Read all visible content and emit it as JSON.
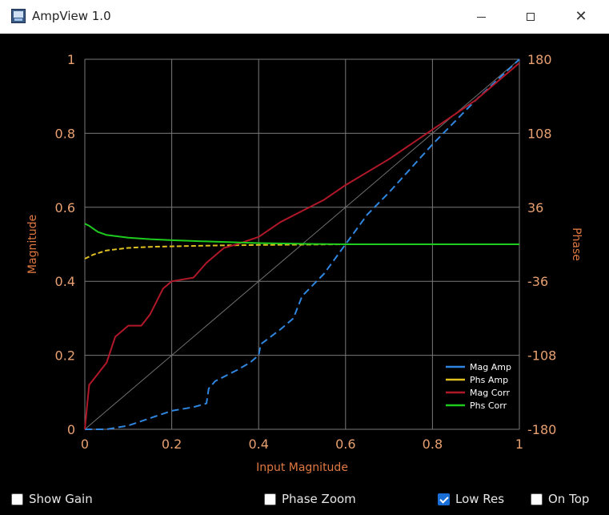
{
  "window": {
    "title": "AmpView 1.0",
    "icon": "app-icon",
    "controls": [
      "minimize-icon",
      "maximize-icon",
      "close-icon"
    ],
    "close_glyph": "✕"
  },
  "checkboxes": [
    {
      "label": "Show Gain",
      "checked": false
    },
    {
      "label": "Phase Zoom",
      "checked": false
    },
    {
      "label": "Low Res",
      "checked": true
    },
    {
      "label": "On Top",
      "checked": false
    }
  ],
  "chart_data": {
    "type": "line",
    "xlabel": "Input Magnitude",
    "ylabel": "Magnitude",
    "y2label": "Phase",
    "xlim": [
      0,
      1
    ],
    "ylim": [
      0,
      1
    ],
    "y2lim": [
      -180,
      180
    ],
    "xticks": [
      "0",
      "0.2",
      "0.4",
      "0.6",
      "0.8",
      "1"
    ],
    "yticks": [
      "0",
      "0.2",
      "0.4",
      "0.6",
      "0.8",
      "1"
    ],
    "y2ticks": [
      "-180",
      "-108",
      "-36",
      "36",
      "108",
      "180"
    ],
    "grid": true,
    "legend_position": "bottom-right",
    "colors": {
      "background": "#000000",
      "grid": "#7a7a7a",
      "text": "#e8a070",
      "axis_label": "#e07840",
      "diagonal": "#707070"
    },
    "series": [
      {
        "name": "Mag Amp",
        "color": "#2f86e0",
        "axis": "left",
        "x": [
          0.0,
          0.05,
          0.1,
          0.15,
          0.2,
          0.25,
          0.28,
          0.285,
          0.3,
          0.35,
          0.38,
          0.4,
          0.405,
          0.45,
          0.48,
          0.5,
          0.55,
          0.6,
          0.65,
          0.7,
          0.8,
          0.9,
          1.0
        ],
        "y": [
          0.0,
          0.0,
          0.01,
          0.03,
          0.05,
          0.06,
          0.07,
          0.11,
          0.13,
          0.16,
          0.18,
          0.2,
          0.23,
          0.27,
          0.3,
          0.36,
          0.42,
          0.5,
          0.58,
          0.64,
          0.77,
          0.89,
          1.0
        ]
      },
      {
        "name": "Phs Amp",
        "color": "#e0c020",
        "axis": "right",
        "x": [
          0.0,
          0.02,
          0.05,
          0.1,
          0.15,
          0.2,
          0.3,
          0.4,
          0.5,
          0.6,
          0.8,
          1.0
        ],
        "y": [
          -14,
          -10,
          -6,
          -3.5,
          -2.5,
          -2,
          -1.2,
          -0.6,
          -0.3,
          0,
          0,
          0
        ]
      },
      {
        "name": "Mag Corr",
        "color": "#b0182a",
        "axis": "left",
        "x": [
          0.0,
          0.01,
          0.03,
          0.05,
          0.07,
          0.1,
          0.13,
          0.15,
          0.18,
          0.2,
          0.25,
          0.28,
          0.32,
          0.35,
          0.4,
          0.45,
          0.5,
          0.55,
          0.6,
          0.7,
          0.8,
          0.9,
          1.0
        ],
        "y": [
          0.0,
          0.12,
          0.15,
          0.18,
          0.25,
          0.28,
          0.28,
          0.31,
          0.38,
          0.4,
          0.41,
          0.45,
          0.49,
          0.5,
          0.52,
          0.56,
          0.59,
          0.62,
          0.66,
          0.73,
          0.81,
          0.89,
          0.99
        ]
      },
      {
        "name": "Phs Corr",
        "color": "#1ecc1e",
        "axis": "right",
        "x": [
          0.0,
          0.01,
          0.03,
          0.05,
          0.1,
          0.15,
          0.2,
          0.3,
          0.4,
          0.5,
          0.6,
          0.8,
          1.0
        ],
        "y": [
          20,
          18,
          12,
          9,
          6.5,
          5,
          4,
          2.5,
          1.2,
          0.5,
          0,
          0,
          0
        ]
      }
    ]
  }
}
